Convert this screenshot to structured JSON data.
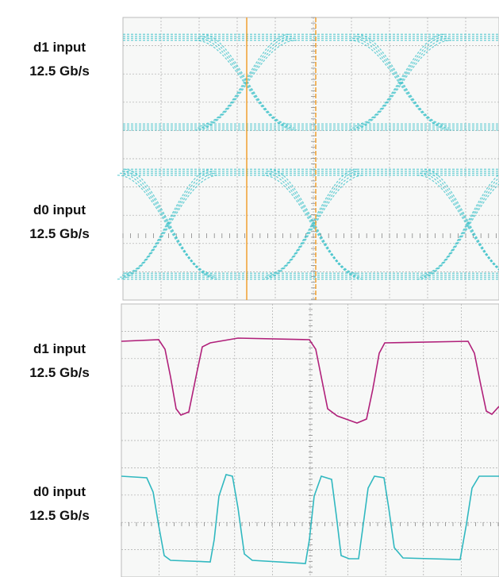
{
  "labels": [
    {
      "name": "d1 input",
      "rate": "12.5 Gb/s"
    },
    {
      "name": "d0 input",
      "rate": "12.5 Gb/s"
    },
    {
      "name": "d1 input",
      "rate": "12.5 Gb/s"
    },
    {
      "name": "d0 input",
      "rate": "12.5 Gb/s"
    }
  ]
}
